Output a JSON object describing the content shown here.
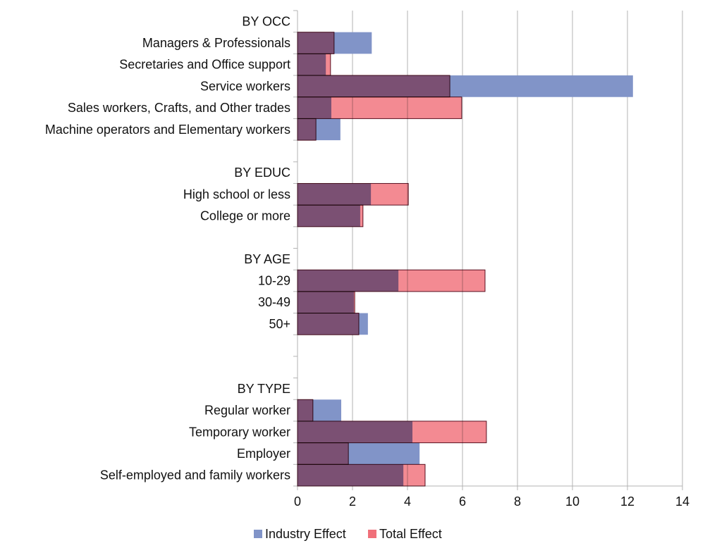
{
  "chart_data": {
    "type": "bar",
    "orientation": "horizontal",
    "overlapping": true,
    "categories": [
      "BY OCC",
      "Managers & Professionals",
      "Secretaries and Office support",
      "Service workers",
      "Sales workers, Crafts, and Other trades",
      "Machine operators and Elementary workers",
      "",
      "BY EDUC",
      "High school or less",
      "College or more",
      "",
      "BY AGE",
      "10-29",
      "30-49",
      "50+",
      "",
      "",
      "BY TYPE",
      "Regular worker",
      "Temporary worker",
      "Employer",
      "Self-employed and family workers"
    ],
    "series": [
      {
        "name": "Industry Effect",
        "color": "#8194c8",
        "values": [
          null,
          2.7,
          1.03,
          12.2,
          1.23,
          1.56,
          null,
          null,
          2.67,
          2.28,
          null,
          null,
          3.67,
          2.05,
          2.56,
          null,
          null,
          null,
          1.59,
          4.18,
          4.44,
          3.85
        ]
      },
      {
        "name": "Total Effect",
        "color": "#f47a80",
        "values": [
          null,
          1.33,
          1.2,
          5.54,
          5.97,
          0.67,
          null,
          null,
          4.03,
          2.38,
          null,
          null,
          6.82,
          2.08,
          2.23,
          null,
          null,
          null,
          0.56,
          6.87,
          1.85,
          4.64
        ]
      }
    ],
    "xlim": [
      0,
      14
    ],
    "xticks": [
      "0",
      "2",
      "4",
      "6",
      "8",
      "10",
      "12",
      "14"
    ],
    "grid": true,
    "legend": "bottom"
  }
}
